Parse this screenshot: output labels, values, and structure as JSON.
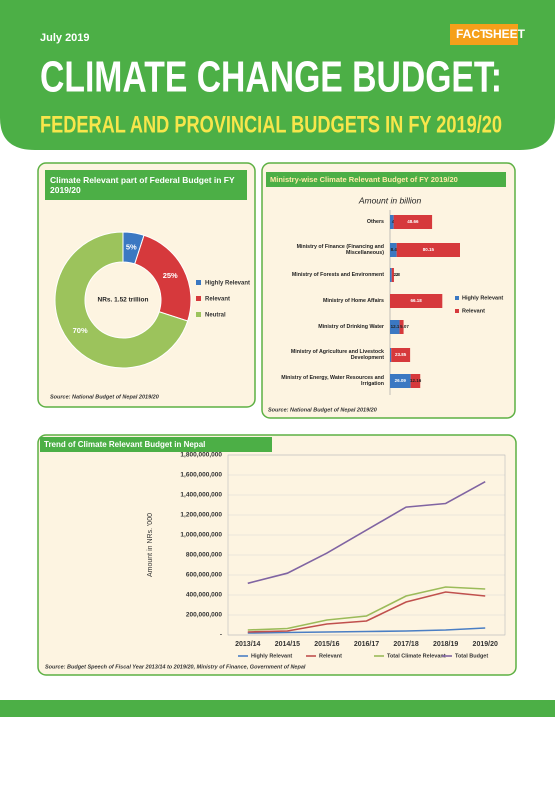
{
  "header": {
    "date": "July 2019",
    "badge_left": "FACT",
    "badge_right": "SHEET",
    "title": "CLIMATE CHANGE BUDGET:",
    "subtitle": "FEDERAL AND PROVINCIAL BUDGETS IN FY 2019/20"
  },
  "chart_data": [
    {
      "type": "pie",
      "title": "Climate Relevant part of Federal Budget in FY 2019/20",
      "center_label": "NRs. 1.52 trillion",
      "categories": [
        "Highly Relevant",
        "Relevant",
        "Neutral"
      ],
      "values": [
        5,
        25,
        70
      ],
      "value_labels": [
        "5%",
        "25%",
        "70%"
      ],
      "colors": [
        "#3b78c2",
        "#d6393c",
        "#9cc35c"
      ],
      "source": "Source: National Budget of Nepal 2019/20"
    },
    {
      "type": "hbar",
      "stacked": true,
      "title": "Ministry-wise Climate Relevant Budget of FY 2019/20",
      "axis_title": "Amount in billion",
      "categories": [
        "Others",
        "Ministry of Finance (Financing and Miscellaneous)",
        "Ministry of Forests and Environment",
        "Ministry of Home Affairs",
        "Ministry of Drinking Water",
        "Ministry of Agriculture and Livestock Development",
        "Ministry of Energy, Water Resources and Irrigation"
      ],
      "series": [
        {
          "name": "Highly Relevant",
          "color": "#3b78c2",
          "values": [
            4.6,
            8.42,
            2.2,
            null,
            12.1,
            1.6,
            26.09
          ]
        },
        {
          "name": "Relevant",
          "color": "#d6393c",
          "values": [
            48.66,
            80.15,
            2.8,
            66.18,
            5.07,
            23.85,
            12.16
          ]
        }
      ],
      "source": "Source: National Budget of Nepal 2019/20"
    },
    {
      "type": "line",
      "title": "Trend of Climate Relevant Budget in Nepal",
      "y_label": "Amount in NRs. '000",
      "categories": [
        "2013/14",
        "2014/15",
        "2015/16",
        "2016/17",
        "2017/18",
        "2018/19",
        "2019/20"
      ],
      "series": [
        {
          "name": "Highly Relevant",
          "color": "#4a7ec4",
          "values": [
            20000000,
            25000000,
            30000000,
            35000000,
            40000000,
            50000000,
            70000000
          ]
        },
        {
          "name": "Relevant",
          "color": "#c0504d",
          "values": [
            30000000,
            40000000,
            110000000,
            140000000,
            330000000,
            430000000,
            390000000
          ]
        },
        {
          "name": "Total Climate Relevant",
          "color": "#9bbb59",
          "values": [
            50000000,
            65000000,
            150000000,
            190000000,
            390000000,
            480000000,
            460000000
          ]
        },
        {
          "name": "Total Budget",
          "color": "#8064a2",
          "values": [
            517000000,
            618000000,
            819000000,
            1049000000,
            1279000000,
            1315000000,
            1533000000
          ]
        }
      ],
      "ylim": [
        0,
        1800000000
      ],
      "yticks": [
        {
          "value": 0,
          "label": "-"
        },
        {
          "value": 200000000,
          "label": "200,000,000"
        },
        {
          "value": 400000000,
          "label": "400,000,000"
        },
        {
          "value": 600000000,
          "label": "600,000,000"
        },
        {
          "value": 800000000,
          "label": "800,000,000"
        },
        {
          "value": 1000000000,
          "label": "1,000,000,000"
        },
        {
          "value": 1200000000,
          "label": "1,200,000,000"
        },
        {
          "value": 1400000000,
          "label": "1,400,000,000"
        },
        {
          "value": 1600000000,
          "label": "1,600,000,000"
        },
        {
          "value": 1800000000,
          "label": "1,800,000,000"
        }
      ],
      "grid": true,
      "source": "Source: Budget Speech of Fiscal Year 2013/14 to 2019/20, Ministry of Finance, Government of Nepal"
    }
  ]
}
